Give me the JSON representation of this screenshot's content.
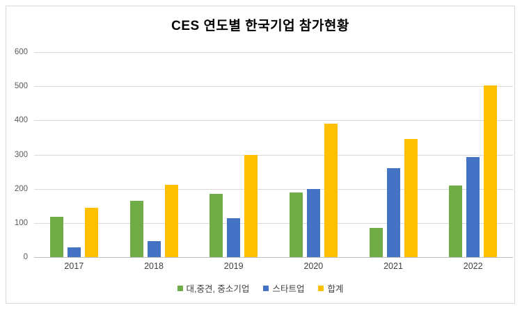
{
  "chart_data": {
    "type": "bar",
    "title": "CES 연도별 한국기업 참가현황",
    "categories": [
      "2017",
      "2018",
      "2019",
      "2020",
      "2021",
      "2022"
    ],
    "series": [
      {
        "key": "large-mid-small",
        "name": "대,중견, 중소기업",
        "color": "#70AD47",
        "values": [
          117,
          165,
          185,
          190,
          85,
          210
        ]
      },
      {
        "key": "startup",
        "name": "스타트업",
        "color": "#4472C4",
        "values": [
          28,
          47,
          113,
          200,
          260,
          292
        ]
      },
      {
        "key": "total",
        "name": "합계",
        "color": "#FFC000",
        "values": [
          145,
          212,
          298,
          390,
          345,
          502
        ]
      }
    ],
    "xlabel": "",
    "ylabel": "",
    "ylim": [
      0,
      600
    ],
    "y_ticks": [
      0,
      100,
      200,
      300,
      400,
      500,
      600
    ],
    "grid": true,
    "legend_position": "bottom",
    "colors": {
      "gridline": "#D9D9D9",
      "axis_line": "#BFBFBF",
      "tick_label": "#595959",
      "category_label": "#404040",
      "title": "#000000",
      "frame_border": "#D9D9D9",
      "background": "#FFFFFF"
    }
  }
}
